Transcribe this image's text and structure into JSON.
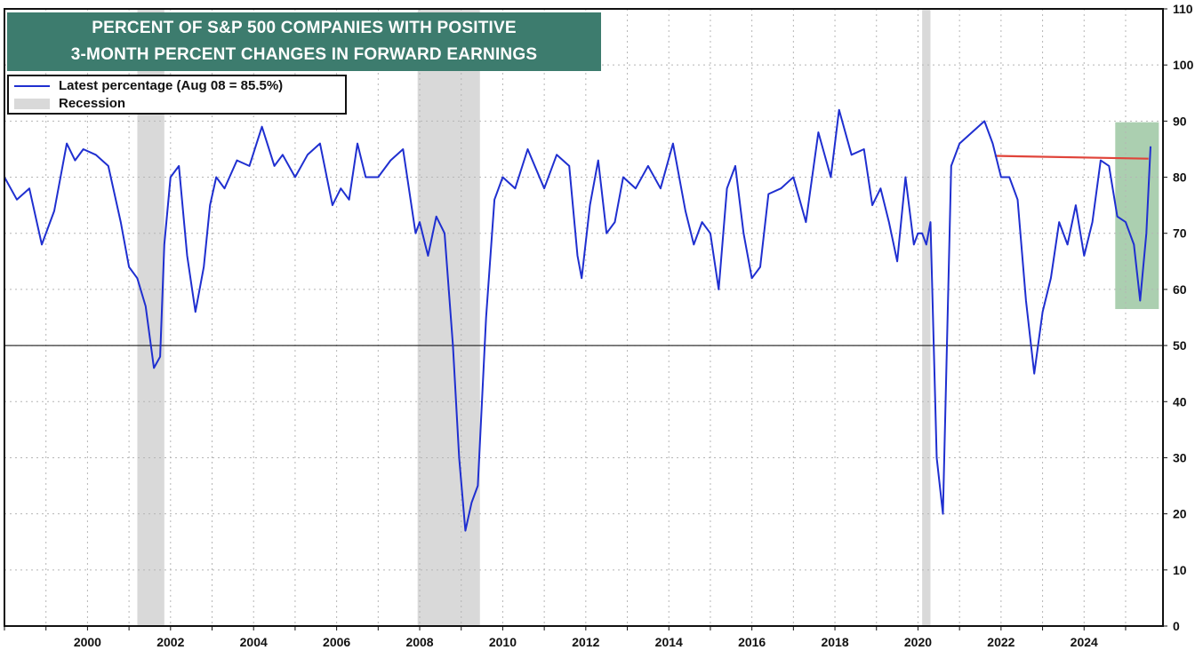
{
  "title": {
    "line1": "PERCENT OF S&P 500 COMPANIES WITH POSITIVE",
    "line2": "3-MONTH PERCENT CHANGES IN FORWARD EARNINGS"
  },
  "legend": {
    "series_label": "Latest percentage (Aug 08 = 85.5%)",
    "recession_label": "Recession"
  },
  "colors": {
    "series": "#1f2fd0",
    "recession": "#d9d9d9",
    "highlight": "#8fbf96",
    "reference_line": "#e0443a",
    "title_bg": "#3d7c6e"
  },
  "chart_data": {
    "type": "line",
    "title": "PERCENT OF S&P 500 COMPANIES WITH POSITIVE 3-MONTH PERCENT CHANGES IN FORWARD EARNINGS",
    "xlabel": "",
    "ylabel": "",
    "xlim": [
      1998.0,
      2025.9
    ],
    "ylim": [
      0,
      110
    ],
    "x_ticks": [
      2000,
      2002,
      2004,
      2006,
      2008,
      2010,
      2012,
      2014,
      2016,
      2018,
      2020,
      2022,
      2024
    ],
    "y_ticks": [
      0,
      10,
      20,
      30,
      40,
      50,
      60,
      70,
      80,
      90,
      100,
      110
    ],
    "y_axis_side": "right",
    "grid": true,
    "legend_position": "top-left",
    "series": [
      {
        "name": "Latest percentage (Aug 08 = 85.5%)",
        "x": [
          1998.0,
          1998.3,
          1998.6,
          1998.9,
          1999.2,
          1999.5,
          1999.7,
          1999.9,
          2000.2,
          2000.5,
          2000.8,
          2001.0,
          2001.2,
          2001.4,
          2001.6,
          2001.75,
          2001.85,
          2002.0,
          2002.2,
          2002.4,
          2002.6,
          2002.8,
          2002.95,
          2003.1,
          2003.3,
          2003.6,
          2003.9,
          2004.2,
          2004.5,
          2004.7,
          2005.0,
          2005.3,
          2005.6,
          2005.9,
          2006.1,
          2006.3,
          2006.5,
          2006.7,
          2007.0,
          2007.3,
          2007.6,
          2007.9,
          2008.0,
          2008.2,
          2008.4,
          2008.6,
          2008.8,
          2008.95,
          2009.1,
          2009.25,
          2009.4,
          2009.6,
          2009.8,
          2010.0,
          2010.3,
          2010.6,
          2011.0,
          2011.3,
          2011.6,
          2011.8,
          2011.9,
          2012.1,
          2012.3,
          2012.5,
          2012.7,
          2012.9,
          2013.2,
          2013.5,
          2013.8,
          2014.1,
          2014.4,
          2014.6,
          2014.8,
          2015.0,
          2015.2,
          2015.4,
          2015.6,
          2015.8,
          2016.0,
          2016.2,
          2016.4,
          2016.7,
          2017.0,
          2017.3,
          2017.6,
          2017.9,
          2018.1,
          2018.4,
          2018.7,
          2018.9,
          2019.1,
          2019.3,
          2019.5,
          2019.7,
          2019.9,
          2020.0,
          2020.1,
          2020.2,
          2020.3,
          2020.45,
          2020.6,
          2020.8,
          2021.0,
          2021.3,
          2021.6,
          2021.8,
          2022.0,
          2022.2,
          2022.4,
          2022.6,
          2022.8,
          2023.0,
          2023.2,
          2023.4,
          2023.6,
          2023.8,
          2024.0,
          2024.2,
          2024.4,
          2024.6,
          2024.8,
          2025.0,
          2025.2,
          2025.35,
          2025.5,
          2025.6
        ],
        "values": [
          80,
          76,
          78,
          68,
          74,
          86,
          83,
          85,
          84,
          82,
          72,
          64,
          62,
          57,
          46,
          48,
          68,
          80,
          82,
          66,
          56,
          64,
          75,
          80,
          78,
          83,
          82,
          89,
          82,
          84,
          80,
          84,
          86,
          75,
          78,
          76,
          86,
          80,
          80,
          83,
          85,
          70,
          72,
          66,
          73,
          70,
          50,
          30,
          17,
          22,
          25,
          55,
          76,
          80,
          78,
          85,
          78,
          84,
          82,
          66,
          62,
          75,
          83,
          70,
          72,
          80,
          78,
          82,
          78,
          86,
          74,
          68,
          72,
          70,
          60,
          78,
          82,
          70,
          62,
          64,
          77,
          78,
          80,
          72,
          88,
          80,
          92,
          84,
          85,
          75,
          78,
          72,
          65,
          80,
          68,
          70,
          70,
          68,
          72,
          30,
          20,
          82,
          86,
          88,
          90,
          86,
          80,
          80,
          76,
          58,
          45,
          56,
          62,
          72,
          68,
          75,
          66,
          72,
          83,
          82,
          73,
          72,
          68,
          58,
          70,
          85.5
        ]
      }
    ],
    "recessions": [
      [
        2001.2,
        2001.85
      ],
      [
        2007.95,
        2009.45
      ],
      [
        2020.1,
        2020.3
      ]
    ],
    "highlight_box": {
      "x": [
        2024.75,
        2025.8
      ],
      "y": [
        56.5,
        89.8
      ]
    },
    "reference_lines": [
      {
        "type": "horizontal",
        "y": 50,
        "color": "#333333"
      },
      {
        "type": "segment",
        "x": [
          2021.85,
          2025.55
        ],
        "y": [
          83.8,
          83.3
        ],
        "color": "#e0443a"
      }
    ]
  }
}
